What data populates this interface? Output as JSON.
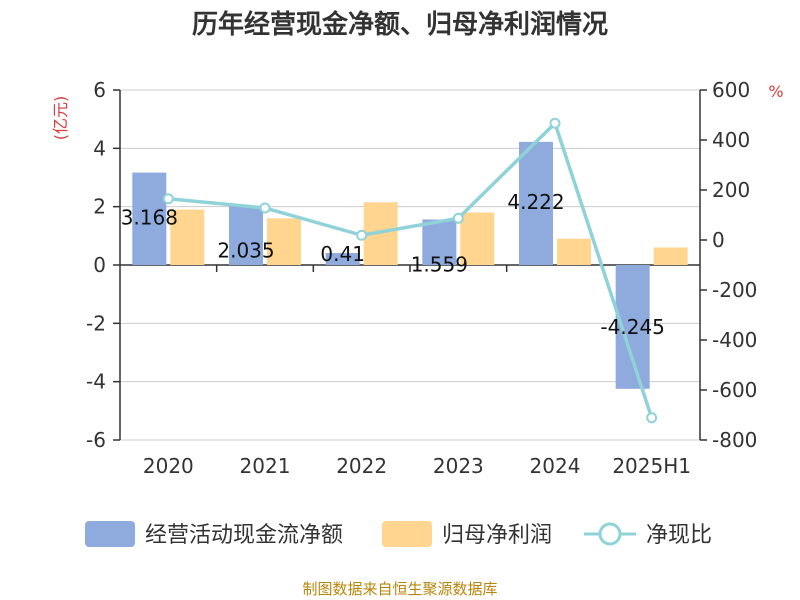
{
  "chart_data": {
    "type": "bar",
    "title": "历年经营现金净额、归母净利润情况",
    "categories": [
      "2020",
      "2021",
      "2022",
      "2023",
      "2024",
      "2025H1"
    ],
    "y_left": {
      "unit": "(亿元)",
      "ylim": [
        -6,
        6
      ],
      "ticks": [
        6,
        4,
        2,
        0,
        -2,
        -4,
        -6
      ]
    },
    "y_right": {
      "unit": "%",
      "ylim": [
        -800,
        600
      ],
      "ticks": [
        600,
        400,
        200,
        0,
        -200,
        -400,
        -600,
        -800
      ]
    },
    "series": [
      {
        "name": "经营活动现金流净额",
        "kind": "bar",
        "axis": "left",
        "color": "#8faadc",
        "values": [
          3.168,
          2.035,
          0.41,
          1.559,
          4.222,
          -4.245
        ],
        "labels": [
          "3.168",
          "2.035",
          "0.41",
          "1.559",
          "4.222",
          "-4.245"
        ]
      },
      {
        "name": "归母净利润",
        "kind": "bar",
        "axis": "left",
        "color": "#ffd58f",
        "values": [
          1.9,
          1.6,
          2.15,
          1.8,
          0.9,
          0.6
        ]
      },
      {
        "name": "净现比",
        "kind": "line",
        "axis": "right",
        "color": "#8fd3d9",
        "values": [
          165,
          128,
          19,
          87,
          467,
          -711
        ]
      }
    ],
    "grid": true,
    "legend_position": "bottom"
  },
  "footer": {
    "source": "制图数据来自恒生聚源数据库"
  }
}
